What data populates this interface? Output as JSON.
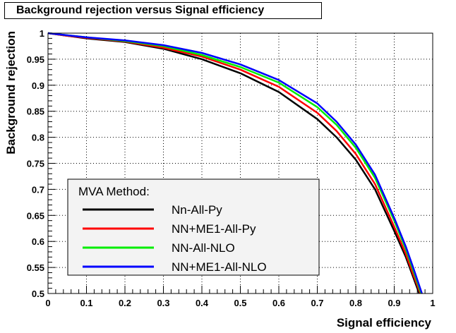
{
  "chart_data": {
    "type": "line",
    "title": "Background rejection versus Signal efficiency",
    "xlabel": "Signal efficiency",
    "ylabel": "Background rejection",
    "xlim": [
      0,
      1
    ],
    "ylim": [
      0.5,
      1
    ],
    "grid": true,
    "x_ticks": [
      "0",
      "0.1",
      "0.2",
      "0.3",
      "0.4",
      "0.5",
      "0.6",
      "0.7",
      "0.8",
      "0.9",
      "1"
    ],
    "y_ticks": [
      "0.5",
      "0.55",
      "0.6",
      "0.65",
      "0.7",
      "0.75",
      "0.8",
      "0.85",
      "0.9",
      "0.95",
      "1"
    ],
    "legend": {
      "title": "MVA Method:",
      "placement": "bottom-left"
    },
    "series": [
      {
        "name": "Nn-All-Py",
        "color": "#000000",
        "x": [
          0,
          0.05,
          0.1,
          0.2,
          0.3,
          0.4,
          0.5,
          0.6,
          0.7,
          0.75,
          0.8,
          0.85,
          0.9,
          0.93,
          0.95,
          0.965
        ],
        "y": [
          1.0,
          0.995,
          0.99,
          0.983,
          0.97,
          0.95,
          0.923,
          0.887,
          0.835,
          0.8,
          0.757,
          0.7,
          0.62,
          0.57,
          0.53,
          0.5
        ]
      },
      {
        "name": "NN+ME1-All-Py",
        "color": "#ff0000",
        "x": [
          0,
          0.05,
          0.1,
          0.2,
          0.3,
          0.4,
          0.5,
          0.6,
          0.7,
          0.75,
          0.8,
          0.85,
          0.9,
          0.93,
          0.95,
          0.968
        ],
        "y": [
          1.0,
          0.995,
          0.991,
          0.984,
          0.972,
          0.955,
          0.93,
          0.897,
          0.847,
          0.812,
          0.768,
          0.71,
          0.628,
          0.576,
          0.535,
          0.5
        ]
      },
      {
        "name": "NN-All-NLO",
        "color": "#00ee00",
        "x": [
          0,
          0.05,
          0.1,
          0.2,
          0.3,
          0.4,
          0.5,
          0.6,
          0.7,
          0.75,
          0.8,
          0.85,
          0.9,
          0.93,
          0.95,
          0.97
        ],
        "y": [
          1.0,
          0.996,
          0.992,
          0.985,
          0.975,
          0.958,
          0.935,
          0.905,
          0.858,
          0.824,
          0.78,
          0.722,
          0.64,
          0.585,
          0.543,
          0.5
        ]
      },
      {
        "name": "NN+ME1-All-NLO",
        "color": "#0000ff",
        "x": [
          0,
          0.05,
          0.1,
          0.2,
          0.3,
          0.4,
          0.5,
          0.6,
          0.7,
          0.75,
          0.8,
          0.85,
          0.9,
          0.93,
          0.95,
          0.972
        ],
        "y": [
          1.0,
          0.996,
          0.992,
          0.986,
          0.977,
          0.962,
          0.94,
          0.91,
          0.865,
          0.83,
          0.786,
          0.728,
          0.645,
          0.59,
          0.548,
          0.5
        ]
      }
    ]
  }
}
